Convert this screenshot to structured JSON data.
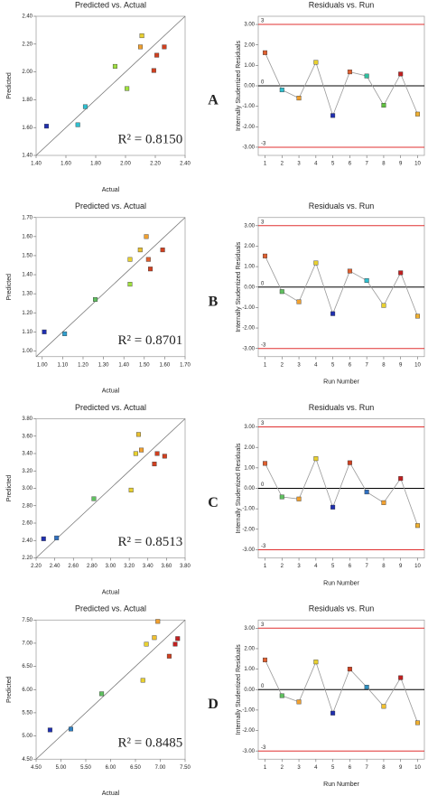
{
  "chart_data": [
    {
      "type": "scatter",
      "title": "Predicted vs. Actual",
      "xlabel": "Actual",
      "ylabel": "Predicted",
      "annotation": "R² = 0.8150",
      "diagonal": true,
      "x": [
        1.47,
        1.68,
        1.73,
        1.93,
        2.01,
        2.11,
        2.1,
        2.19,
        2.21,
        2.26
      ],
      "values": [
        1.61,
        1.62,
        1.75,
        2.04,
        1.88,
        2.26,
        2.18,
        2.01,
        2.12,
        2.18
      ],
      "colors": [
        "#1f2fb0",
        "#30c0d0",
        "#30c0d0",
        "#a0e040",
        "#a0e040",
        "#e8d030",
        "#f0a030",
        "#d04020",
        "#d04020",
        "#d04020"
      ],
      "xlim": [
        1.4,
        2.4
      ],
      "ylim": [
        1.4,
        2.4
      ],
      "xticks": [
        {
          "value": 1.4,
          "label": "1.40"
        },
        {
          "value": 1.6,
          "label": "1.60"
        },
        {
          "value": 1.8,
          "label": "1.80"
        },
        {
          "value": 2.0,
          "label": "2.00"
        },
        {
          "value": 2.2,
          "label": "2.20"
        },
        {
          "value": 2.4,
          "label": "2.40"
        }
      ],
      "yticks": [
        {
          "value": 1.4,
          "label": "1.40"
        },
        {
          "value": 1.6,
          "label": "1.60"
        },
        {
          "value": 1.8,
          "label": "1.80"
        },
        {
          "value": 2.0,
          "label": "2.00"
        },
        {
          "value": 2.2,
          "label": "2.20"
        },
        {
          "value": 2.4,
          "label": "2.40"
        }
      ]
    },
    {
      "type": "line",
      "title": "Residuals vs. Run",
      "ylabel": "Internally Studentized Residuals",
      "x": [
        1,
        2,
        3,
        4,
        5,
        6,
        7,
        8,
        9,
        10
      ],
      "values": [
        1.62,
        -0.2,
        -0.6,
        1.15,
        -1.45,
        0.68,
        0.48,
        -0.95,
        0.58,
        -1.38
      ],
      "colors": [
        "#e06030",
        "#30c0d0",
        "#f0a030",
        "#e8d030",
        "#1f2fb0",
        "#e06030",
        "#30c0a0",
        "#60c040",
        "#c02020",
        "#f0b030"
      ],
      "ref_lines": [
        3,
        0,
        -3
      ],
      "ref_colors": [
        "#e03030",
        "#000000",
        "#e03030"
      ],
      "xlim": [
        0.6,
        10.4
      ],
      "ylim": [
        -3.4,
        3.4
      ],
      "xticks": [
        1,
        2,
        3,
        4,
        5,
        6,
        7,
        8,
        9,
        10
      ],
      "yticks": [
        {
          "value": 3,
          "label": "3.00"
        },
        {
          "value": 2,
          "label": "2.00"
        },
        {
          "value": 1,
          "label": "1.00"
        },
        {
          "value": 0,
          "label": "0.00"
        },
        {
          "value": -1,
          "label": "-1.00"
        },
        {
          "value": -2,
          "label": "-2.00"
        },
        {
          "value": -3,
          "label": "-3.00"
        }
      ]
    },
    {
      "type": "scatter",
      "title": "Predicted vs. Actual",
      "xlabel": "Actual",
      "ylabel": "Predicted",
      "annotation": "R² = 0.8701",
      "diagonal": true,
      "x": [
        1.01,
        1.11,
        1.26,
        1.43,
        1.43,
        1.48,
        1.51,
        1.52,
        1.53,
        1.59
      ],
      "values": [
        1.1,
        1.09,
        1.27,
        1.35,
        1.48,
        1.53,
        1.6,
        1.48,
        1.43,
        1.53
      ],
      "colors": [
        "#1f2fb0",
        "#30a0d0",
        "#60c060",
        "#a0e040",
        "#e8d030",
        "#e8c030",
        "#f0a030",
        "#e06030",
        "#d04020",
        "#d04020"
      ],
      "xlim": [
        0.97,
        1.7
      ],
      "ylim": [
        0.97,
        1.7
      ],
      "xticks": [
        {
          "value": 1.0,
          "label": "1.00"
        },
        {
          "value": 1.1,
          "label": "1.10"
        },
        {
          "value": 1.2,
          "label": "1.20"
        },
        {
          "value": 1.3,
          "label": "1.30"
        },
        {
          "value": 1.4,
          "label": "1.40"
        },
        {
          "value": 1.5,
          "label": "1.50"
        },
        {
          "value": 1.6,
          "label": "1.60"
        },
        {
          "value": 1.7,
          "label": "1.70"
        }
      ],
      "yticks": [
        {
          "value": 1.0,
          "label": "1.00"
        },
        {
          "value": 1.1,
          "label": "1.10"
        },
        {
          "value": 1.2,
          "label": "1.20"
        },
        {
          "value": 1.3,
          "label": "1.30"
        },
        {
          "value": 1.4,
          "label": "1.40"
        },
        {
          "value": 1.5,
          "label": "1.50"
        },
        {
          "value": 1.6,
          "label": "1.60"
        },
        {
          "value": 1.7,
          "label": "1.70"
        }
      ]
    },
    {
      "type": "line",
      "title": "Residuals vs. Run",
      "xlabel": "Run Number",
      "ylabel": "Internally Studentized Residuals",
      "x": [
        1,
        2,
        3,
        4,
        5,
        6,
        7,
        8,
        9,
        10
      ],
      "values": [
        1.52,
        -0.22,
        -0.72,
        1.18,
        -1.3,
        0.78,
        0.32,
        -0.9,
        0.7,
        -1.42
      ],
      "colors": [
        "#e06030",
        "#60c060",
        "#f0a030",
        "#e8d030",
        "#1f2fb0",
        "#e06030",
        "#30c0d0",
        "#e8d030",
        "#c02020",
        "#f0b030"
      ],
      "ref_lines": [
        3,
        0,
        -3
      ],
      "ref_colors": [
        "#e03030",
        "#000000",
        "#e03030"
      ],
      "xlim": [
        0.6,
        10.4
      ],
      "ylim": [
        -3.4,
        3.4
      ],
      "xticks": [
        1,
        2,
        3,
        4,
        5,
        6,
        7,
        8,
        9,
        10
      ],
      "yticks": [
        {
          "value": 3,
          "label": "3.00"
        },
        {
          "value": 2,
          "label": "2.00"
        },
        {
          "value": 1,
          "label": "1.00"
        },
        {
          "value": 0,
          "label": "0.00"
        },
        {
          "value": -1,
          "label": "-1.00"
        },
        {
          "value": -2,
          "label": "-2.00"
        },
        {
          "value": -3,
          "label": "-3.00"
        }
      ]
    },
    {
      "type": "scatter",
      "title": "Predicted vs. Actual",
      "xlabel": "Actual",
      "ylabel": "Predicted",
      "annotation": "R² = 0.8513",
      "diagonal": true,
      "x": [
        2.28,
        2.42,
        2.82,
        3.22,
        3.27,
        3.3,
        3.33,
        3.47,
        3.5,
        3.58
      ],
      "values": [
        2.42,
        2.43,
        2.88,
        2.98,
        3.4,
        3.62,
        3.44,
        3.28,
        3.4,
        3.37
      ],
      "colors": [
        "#1f2fb0",
        "#3070c0",
        "#60c060",
        "#e8d030",
        "#e8d030",
        "#e8c030",
        "#f0a030",
        "#d04020",
        "#d04020",
        "#d04020"
      ],
      "xlim": [
        2.2,
        3.8
      ],
      "ylim": [
        2.2,
        3.8
      ],
      "xticks": [
        {
          "value": 2.2,
          "label": "2.20"
        },
        {
          "value": 2.4,
          "label": "2.40"
        },
        {
          "value": 2.6,
          "label": "2.60"
        },
        {
          "value": 2.8,
          "label": "2.80"
        },
        {
          "value": 3.0,
          "label": "3.00"
        },
        {
          "value": 3.2,
          "label": "3.20"
        },
        {
          "value": 3.4,
          "label": "3.40"
        },
        {
          "value": 3.6,
          "label": "3.60"
        },
        {
          "value": 3.8,
          "label": "3.80"
        }
      ],
      "yticks": [
        {
          "value": 2.2,
          "label": "2.20"
        },
        {
          "value": 2.4,
          "label": "2.40"
        },
        {
          "value": 2.6,
          "label": "2.60"
        },
        {
          "value": 2.8,
          "label": "2.80"
        },
        {
          "value": 3.0,
          "label": "3.00"
        },
        {
          "value": 3.2,
          "label": "3.20"
        },
        {
          "value": 3.4,
          "label": "3.40"
        },
        {
          "value": 3.6,
          "label": "3.60"
        },
        {
          "value": 3.8,
          "label": "3.80"
        }
      ]
    },
    {
      "type": "line",
      "title": "Residuals vs. Run",
      "xlabel": "Run Number",
      "ylabel": "Internally Studentized Residuals",
      "x": [
        1,
        2,
        3,
        4,
        5,
        6,
        7,
        8,
        9,
        10
      ],
      "values": [
        1.22,
        -0.42,
        -0.52,
        1.45,
        -0.92,
        1.25,
        -0.18,
        -0.7,
        0.48,
        -1.82
      ],
      "colors": [
        "#e06030",
        "#60c060",
        "#f0a030",
        "#e8d030",
        "#1f2fb0",
        "#d04020",
        "#3070c0",
        "#f0a030",
        "#c02020",
        "#f0b030"
      ],
      "ref_lines": [
        3,
        0,
        -3
      ],
      "ref_colors": [
        "#e03030",
        "#000000",
        "#e03030"
      ],
      "xlim": [
        0.6,
        10.4
      ],
      "ylim": [
        -3.4,
        3.4
      ],
      "xticks": [
        1,
        2,
        3,
        4,
        5,
        6,
        7,
        8,
        9,
        10
      ],
      "yticks": [
        {
          "value": 3,
          "label": "3.00"
        },
        {
          "value": 2,
          "label": "2.00"
        },
        {
          "value": 1,
          "label": "1.00"
        },
        {
          "value": 0,
          "label": "0.00"
        },
        {
          "value": -1,
          "label": "-1.00"
        },
        {
          "value": -2,
          "label": "-2.00"
        },
        {
          "value": -3,
          "label": "-3.00"
        }
      ]
    },
    {
      "type": "scatter",
      "title": "Predicted vs. Actual",
      "xlabel": "Actual",
      "ylabel": "Predicted",
      "annotation": "R² = 0.8485",
      "diagonal": true,
      "x": [
        4.78,
        5.2,
        5.82,
        6.65,
        6.72,
        6.88,
        6.95,
        7.18,
        7.3,
        7.35
      ],
      "values": [
        5.13,
        5.15,
        5.91,
        6.2,
        6.98,
        7.12,
        7.47,
        6.72,
        6.98,
        7.1
      ],
      "colors": [
        "#1f2fb0",
        "#3080c0",
        "#60c060",
        "#e8d030",
        "#e8d030",
        "#f0c030",
        "#f0a030",
        "#d04020",
        "#c02020",
        "#c02020"
      ],
      "xlim": [
        4.5,
        7.5
      ],
      "ylim": [
        4.5,
        7.5
      ],
      "xticks": [
        {
          "value": 4.5,
          "label": "4.50"
        },
        {
          "value": 5.0,
          "label": "5.00"
        },
        {
          "value": 5.5,
          "label": "5.50"
        },
        {
          "value": 6.0,
          "label": "6.00"
        },
        {
          "value": 6.5,
          "label": "6.50"
        },
        {
          "value": 7.0,
          "label": "7.00"
        },
        {
          "value": 7.5,
          "label": "7.50"
        }
      ],
      "yticks": [
        {
          "value": 4.5,
          "label": "4.50"
        },
        {
          "value": 5.0,
          "label": "5.00"
        },
        {
          "value": 5.5,
          "label": "5.50"
        },
        {
          "value": 6.0,
          "label": "6.00"
        },
        {
          "value": 6.5,
          "label": "6.50"
        },
        {
          "value": 7.0,
          "label": "7.00"
        },
        {
          "value": 7.5,
          "label": "7.50"
        }
      ]
    },
    {
      "type": "line",
      "title": "Residuals vs. Run",
      "xlabel": "Run Number",
      "ylabel": "Internally Studentized Residuals",
      "x": [
        1,
        2,
        3,
        4,
        5,
        6,
        7,
        8,
        9,
        10
      ],
      "values": [
        1.45,
        -0.3,
        -0.6,
        1.35,
        -1.15,
        1.0,
        0.12,
        -0.82,
        0.58,
        -1.62
      ],
      "colors": [
        "#e06030",
        "#60c060",
        "#f0a030",
        "#e8d030",
        "#1f2fb0",
        "#d04020",
        "#3090c0",
        "#f0c030",
        "#c02020",
        "#f0b030"
      ],
      "ref_lines": [
        3,
        0,
        -3
      ],
      "ref_colors": [
        "#e03030",
        "#000000",
        "#e03030"
      ],
      "xlim": [
        0.6,
        10.4
      ],
      "ylim": [
        -3.4,
        3.4
      ],
      "xticks": [
        1,
        2,
        3,
        4,
        5,
        6,
        7,
        8,
        9,
        10
      ],
      "yticks": [
        {
          "value": 3,
          "label": "3.00"
        },
        {
          "value": 2,
          "label": "2.00"
        },
        {
          "value": 1,
          "label": "1.00"
        },
        {
          "value": 0,
          "label": "0.00"
        },
        {
          "value": -1,
          "label": "-1.00"
        },
        {
          "value": -2,
          "label": "-2.00"
        },
        {
          "value": -3,
          "label": "-3.00"
        }
      ]
    }
  ],
  "panel_labels": [
    "A",
    "B",
    "C",
    "D"
  ]
}
